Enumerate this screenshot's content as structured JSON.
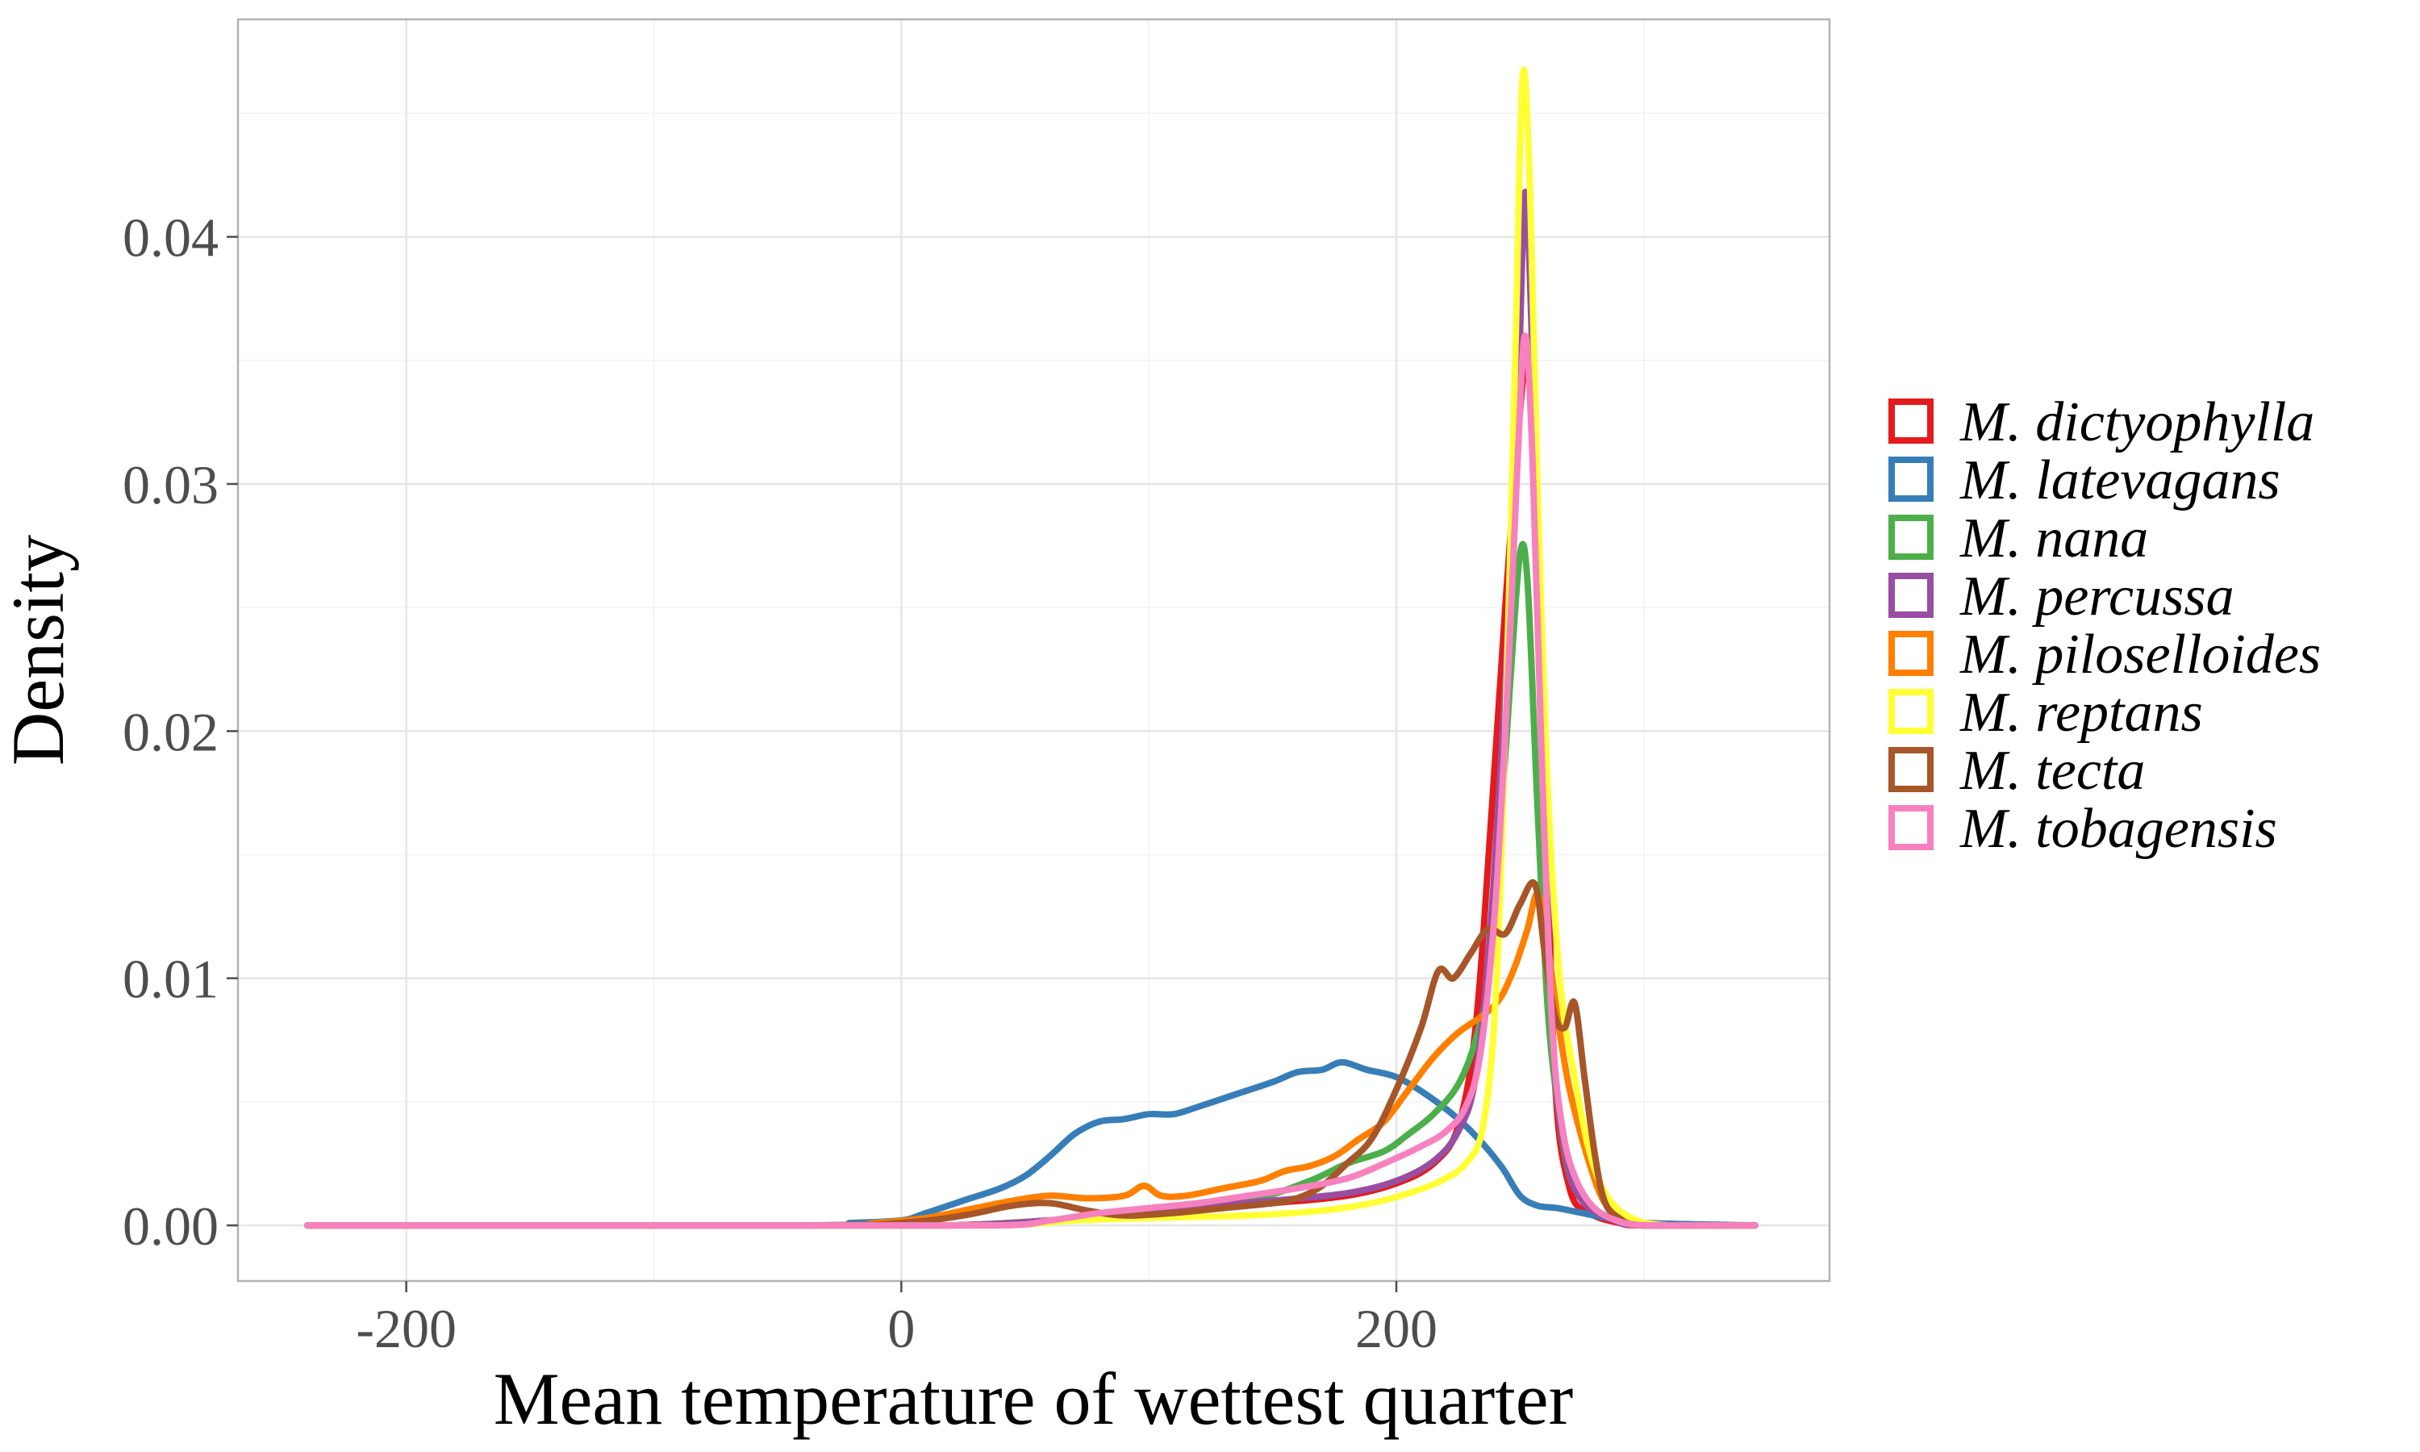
{
  "chart_data": {
    "type": "line",
    "xlabel": "Mean temperature of wettest quarter",
    "ylabel": "Density",
    "xlim": [
      -268,
      375
    ],
    "ylim": [
      -0.00225,
      0.0488
    ],
    "x_ticks": [
      -200,
      0,
      200
    ],
    "x_tick_labels": [
      "-200",
      "0",
      "200"
    ],
    "y_ticks": [
      0,
      0.01,
      0.02,
      0.03,
      0.04
    ],
    "y_tick_labels": [
      "0.00",
      "0.01",
      "0.02",
      "0.03",
      "0.04"
    ],
    "grid": true,
    "legend_position": "right",
    "series": [
      {
        "name": "M. dictyophylla",
        "color": "#e41a1c",
        "points": [
          [
            -240,
            0
          ],
          [
            -40,
            0
          ],
          [
            20,
            0
          ],
          [
            60,
            0.0002
          ],
          [
            100,
            0.0005
          ],
          [
            150,
            0.0009
          ],
          [
            180,
            0.0012
          ],
          [
            200,
            0.0017
          ],
          [
            215,
            0.0025
          ],
          [
            225,
            0.004
          ],
          [
            232,
            0.008
          ],
          [
            238,
            0.016
          ],
          [
            244,
            0.025
          ],
          [
            250,
            0.033
          ],
          [
            253,
            0.035
          ],
          [
            256,
            0.032
          ],
          [
            260,
            0.02
          ],
          [
            264,
            0.006
          ],
          [
            270,
            0.0015
          ],
          [
            278,
            0.0005
          ],
          [
            290,
            0.0001
          ],
          [
            300,
            0
          ],
          [
            345,
            0
          ]
        ]
      },
      {
        "name": "M. latevagans",
        "color": "#377eb8",
        "points": [
          [
            -240,
            0
          ],
          [
            -40,
            0
          ],
          [
            -20,
            0.0001
          ],
          [
            0,
            0.0002
          ],
          [
            10,
            0.0005
          ],
          [
            25,
            0.001
          ],
          [
            40,
            0.0015
          ],
          [
            50,
            0.002
          ],
          [
            60,
            0.0028
          ],
          [
            70,
            0.0037
          ],
          [
            80,
            0.0042
          ],
          [
            90,
            0.0043
          ],
          [
            100,
            0.0045
          ],
          [
            110,
            0.0045
          ],
          [
            120,
            0.0048
          ],
          [
            135,
            0.0053
          ],
          [
            150,
            0.0058
          ],
          [
            160,
            0.0062
          ],
          [
            170,
            0.0063
          ],
          [
            178,
            0.0066
          ],
          [
            188,
            0.0063
          ],
          [
            200,
            0.006
          ],
          [
            212,
            0.0053
          ],
          [
            225,
            0.0043
          ],
          [
            235,
            0.0033
          ],
          [
            243,
            0.0023
          ],
          [
            250,
            0.0012
          ],
          [
            257,
            0.0008
          ],
          [
            265,
            0.0007
          ],
          [
            275,
            0.0005
          ],
          [
            285,
            0.0003
          ],
          [
            300,
            0.0001
          ],
          [
            345,
            0
          ]
        ]
      },
      {
        "name": "M. nana",
        "color": "#4daf4a",
        "points": [
          [
            -240,
            0
          ],
          [
            -40,
            0
          ],
          [
            20,
            0
          ],
          [
            60,
            0.0002
          ],
          [
            100,
            0.0005
          ],
          [
            140,
            0.001
          ],
          [
            165,
            0.0018
          ],
          [
            180,
            0.0025
          ],
          [
            195,
            0.003
          ],
          [
            205,
            0.0037
          ],
          [
            215,
            0.0045
          ],
          [
            225,
            0.0057
          ],
          [
            232,
            0.0075
          ],
          [
            237,
            0.01
          ],
          [
            242,
            0.016
          ],
          [
            246,
            0.022
          ],
          [
            250,
            0.0272
          ],
          [
            253,
            0.026
          ],
          [
            257,
            0.017
          ],
          [
            261,
            0.009
          ],
          [
            265,
            0.005
          ],
          [
            270,
            0.002
          ],
          [
            278,
            0.0008
          ],
          [
            290,
            0.0002
          ],
          [
            305,
            0
          ],
          [
            345,
            0
          ]
        ]
      },
      {
        "name": "M. percussa",
        "color": "#984ea3",
        "points": [
          [
            -240,
            0
          ],
          [
            -40,
            0
          ],
          [
            20,
            0
          ],
          [
            60,
            0.0002
          ],
          [
            100,
            0.0006
          ],
          [
            150,
            0.001
          ],
          [
            180,
            0.0013
          ],
          [
            200,
            0.0018
          ],
          [
            215,
            0.0026
          ],
          [
            225,
            0.0038
          ],
          [
            232,
            0.006
          ],
          [
            238,
            0.012
          ],
          [
            244,
            0.022
          ],
          [
            249,
            0.033
          ],
          [
            252,
            0.0418
          ],
          [
            255,
            0.035
          ],
          [
            259,
            0.02
          ],
          [
            263,
            0.008
          ],
          [
            268,
            0.003
          ],
          [
            275,
            0.001
          ],
          [
            288,
            0.0002
          ],
          [
            300,
            0
          ],
          [
            345,
            0
          ]
        ]
      },
      {
        "name": "M. piloselloides",
        "color": "#ff7f00",
        "points": [
          [
            -240,
            0
          ],
          [
            -40,
            0
          ],
          [
            -10,
            0.0001
          ],
          [
            10,
            0.0003
          ],
          [
            30,
            0.0007
          ],
          [
            45,
            0.001
          ],
          [
            60,
            0.0012
          ],
          [
            75,
            0.0011
          ],
          [
            90,
            0.0012
          ],
          [
            98,
            0.0016
          ],
          [
            105,
            0.0012
          ],
          [
            115,
            0.0012
          ],
          [
            130,
            0.0015
          ],
          [
            145,
            0.0018
          ],
          [
            155,
            0.0022
          ],
          [
            165,
            0.0024
          ],
          [
            175,
            0.0028
          ],
          [
            185,
            0.0035
          ],
          [
            195,
            0.0042
          ],
          [
            205,
            0.0055
          ],
          [
            215,
            0.0068
          ],
          [
            225,
            0.0078
          ],
          [
            235,
            0.0085
          ],
          [
            242,
            0.0092
          ],
          [
            248,
            0.0105
          ],
          [
            253,
            0.012
          ],
          [
            257,
            0.0134
          ],
          [
            261,
            0.0115
          ],
          [
            265,
            0.0085
          ],
          [
            270,
            0.0055
          ],
          [
            278,
            0.0025
          ],
          [
            285,
            0.0008
          ],
          [
            295,
            0.0002
          ],
          [
            310,
            0
          ],
          [
            345,
            0
          ]
        ]
      },
      {
        "name": "M. reptans",
        "color": "#ffff33",
        "points": [
          [
            -240,
            0
          ],
          [
            -40,
            0
          ],
          [
            40,
            0
          ],
          [
            70,
            0.0002
          ],
          [
            100,
            0.0003
          ],
          [
            140,
            0.0004
          ],
          [
            170,
            0.0006
          ],
          [
            190,
            0.0009
          ],
          [
            205,
            0.0013
          ],
          [
            218,
            0.0018
          ],
          [
            228,
            0.0025
          ],
          [
            235,
            0.004
          ],
          [
            240,
            0.009
          ],
          [
            244,
            0.02
          ],
          [
            248,
            0.035
          ],
          [
            251,
            0.0465
          ],
          [
            254,
            0.042
          ],
          [
            257,
            0.03
          ],
          [
            261,
            0.018
          ],
          [
            266,
            0.01
          ],
          [
            272,
            0.006
          ],
          [
            278,
            0.003
          ],
          [
            285,
            0.0012
          ],
          [
            295,
            0.0003
          ],
          [
            310,
            0
          ],
          [
            345,
            0
          ]
        ]
      },
      {
        "name": "M. tecta",
        "color": "#a65628",
        "points": [
          [
            -240,
            0
          ],
          [
            -40,
            0
          ],
          [
            0,
            0.0001
          ],
          [
            25,
            0.0004
          ],
          [
            45,
            0.0008
          ],
          [
            60,
            0.0009
          ],
          [
            75,
            0.0006
          ],
          [
            90,
            0.0004
          ],
          [
            110,
            0.0005
          ],
          [
            130,
            0.0007
          ],
          [
            150,
            0.0009
          ],
          [
            160,
            0.0011
          ],
          [
            170,
            0.0016
          ],
          [
            180,
            0.0025
          ],
          [
            190,
            0.0035
          ],
          [
            200,
            0.0055
          ],
          [
            210,
            0.008
          ],
          [
            217,
            0.0103
          ],
          [
            223,
            0.01
          ],
          [
            230,
            0.011
          ],
          [
            237,
            0.012
          ],
          [
            244,
            0.0118
          ],
          [
            250,
            0.013
          ],
          [
            256,
            0.0138
          ],
          [
            260,
            0.011
          ],
          [
            264,
            0.0085
          ],
          [
            268,
            0.008
          ],
          [
            272,
            0.009
          ],
          [
            276,
            0.006
          ],
          [
            280,
            0.003
          ],
          [
            284,
            0.001
          ],
          [
            290,
            0.0003
          ],
          [
            300,
            0
          ],
          [
            345,
            0
          ]
        ]
      },
      {
        "name": "M. tobagensis",
        "color": "#f781bf",
        "points": [
          [
            -240,
            0
          ],
          [
            -40,
            0
          ],
          [
            40,
            0
          ],
          [
            60,
            0.0002
          ],
          [
            80,
            0.0005
          ],
          [
            100,
            0.0007
          ],
          [
            120,
            0.0009
          ],
          [
            140,
            0.0012
          ],
          [
            160,
            0.0015
          ],
          [
            180,
            0.0019
          ],
          [
            195,
            0.0025
          ],
          [
            210,
            0.0032
          ],
          [
            220,
            0.0038
          ],
          [
            228,
            0.0048
          ],
          [
            234,
            0.007
          ],
          [
            240,
            0.013
          ],
          [
            245,
            0.022
          ],
          [
            249,
            0.031
          ],
          [
            252,
            0.036
          ],
          [
            255,
            0.031
          ],
          [
            259,
            0.018
          ],
          [
            263,
            0.008
          ],
          [
            267,
            0.004
          ],
          [
            272,
            0.002
          ],
          [
            280,
            0.0007
          ],
          [
            292,
            0.0001
          ],
          [
            305,
            0
          ],
          [
            345,
            0
          ]
        ]
      }
    ]
  }
}
